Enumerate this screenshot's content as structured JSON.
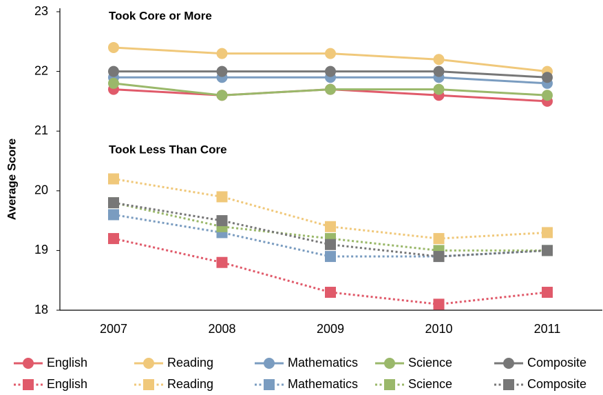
{
  "chart_data": {
    "type": "line",
    "y_label": "Average Score",
    "annotations": [
      "Took Core or More",
      "Took Less Than Core"
    ],
    "categories": [
      "2007",
      "2008",
      "2009",
      "2010",
      "2011"
    ],
    "ylim": [
      18,
      23
    ],
    "yticks": [
      18,
      19,
      20,
      21,
      22,
      23
    ],
    "series": [
      {
        "name": "English",
        "color": "#e05a6a",
        "style": "solid",
        "marker": "circle",
        "values": [
          21.7,
          21.6,
          21.7,
          21.6,
          21.5
        ]
      },
      {
        "name": "Reading",
        "color": "#f0c87a",
        "style": "solid",
        "marker": "circle",
        "values": [
          22.4,
          22.3,
          22.3,
          22.2,
          22.0
        ]
      },
      {
        "name": "Mathematics",
        "color": "#7a9cc0",
        "style": "solid",
        "marker": "circle",
        "values": [
          21.9,
          21.9,
          21.9,
          21.9,
          21.8
        ]
      },
      {
        "name": "Science",
        "color": "#9ab86a",
        "style": "solid",
        "marker": "circle",
        "values": [
          21.8,
          21.6,
          21.7,
          21.7,
          21.6
        ]
      },
      {
        "name": "Composite",
        "color": "#777777",
        "style": "solid",
        "marker": "circle",
        "values": [
          22.0,
          22.0,
          22.0,
          22.0,
          21.9
        ]
      },
      {
        "name": "English",
        "color": "#e05a6a",
        "style": "dotted",
        "marker": "square",
        "values": [
          19.2,
          18.8,
          18.3,
          18.1,
          18.3
        ]
      },
      {
        "name": "Reading",
        "color": "#f0c87a",
        "style": "dotted",
        "marker": "square",
        "values": [
          20.2,
          19.9,
          19.4,
          19.2,
          19.3
        ]
      },
      {
        "name": "Mathematics",
        "color": "#7a9cc0",
        "style": "dotted",
        "marker": "square",
        "values": [
          19.6,
          19.3,
          18.9,
          18.9,
          19.0
        ]
      },
      {
        "name": "Science",
        "color": "#9ab86a",
        "style": "dotted",
        "marker": "square",
        "values": [
          19.8,
          19.4,
          19.2,
          19.0,
          19.0
        ]
      },
      {
        "name": "Composite",
        "color": "#777777",
        "style": "dotted",
        "marker": "square",
        "values": [
          19.8,
          19.5,
          19.1,
          18.9,
          19.0
        ]
      }
    ]
  }
}
